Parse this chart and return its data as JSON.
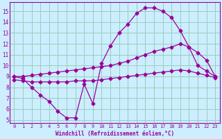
{
  "bg_color": "#cceeff",
  "line_color": "#990099",
  "grid_color": "#99ccbb",
  "xlabel": "Windchill (Refroidissement éolien,°C)",
  "xlim": [
    -0.5,
    23.5
  ],
  "ylim": [
    4.7,
    15.8
  ],
  "xticks": [
    0,
    1,
    2,
    3,
    4,
    5,
    6,
    7,
    8,
    9,
    10,
    11,
    12,
    13,
    14,
    15,
    16,
    17,
    18,
    19,
    20,
    21,
    22,
    23
  ],
  "yticks": [
    5,
    6,
    7,
    8,
    9,
    10,
    11,
    12,
    13,
    14,
    15
  ],
  "line1_x": [
    0,
    1,
    2,
    3,
    4,
    5,
    6,
    7,
    8,
    9,
    10,
    11,
    12,
    13,
    14,
    15,
    16,
    17,
    18,
    19,
    20,
    21,
    22,
    23
  ],
  "line1_y": [
    9.0,
    8.8,
    8.0,
    7.3,
    6.7,
    5.8,
    5.2,
    5.2,
    8.3,
    6.5,
    10.2,
    11.8,
    13.0,
    13.8,
    14.8,
    15.3,
    15.3,
    15.0,
    14.4,
    13.2,
    11.7,
    10.0,
    9.5,
    9.0
  ],
  "line2_x": [
    0,
    1,
    2,
    3,
    4,
    5,
    6,
    7,
    8,
    9,
    10,
    11,
    12,
    13,
    14,
    15,
    16,
    17,
    18,
    19,
    20,
    21,
    22,
    23
  ],
  "line2_y": [
    9.0,
    9.0,
    9.1,
    9.2,
    9.3,
    9.4,
    9.5,
    9.6,
    9.7,
    9.8,
    9.9,
    10.0,
    10.2,
    10.4,
    10.7,
    11.0,
    11.3,
    11.5,
    11.7,
    12.0,
    11.7,
    11.2,
    10.5,
    9.0
  ],
  "line3_x": [
    0,
    1,
    2,
    3,
    4,
    5,
    6,
    7,
    8,
    9,
    10,
    11,
    12,
    13,
    14,
    15,
    16,
    17,
    18,
    19,
    20,
    21,
    22,
    23
  ],
  "line3_y": [
    8.7,
    8.6,
    8.5,
    8.5,
    8.5,
    8.5,
    8.5,
    8.6,
    8.6,
    8.6,
    8.7,
    8.8,
    8.9,
    9.0,
    9.1,
    9.2,
    9.3,
    9.4,
    9.5,
    9.6,
    9.5,
    9.3,
    9.1,
    8.9
  ]
}
